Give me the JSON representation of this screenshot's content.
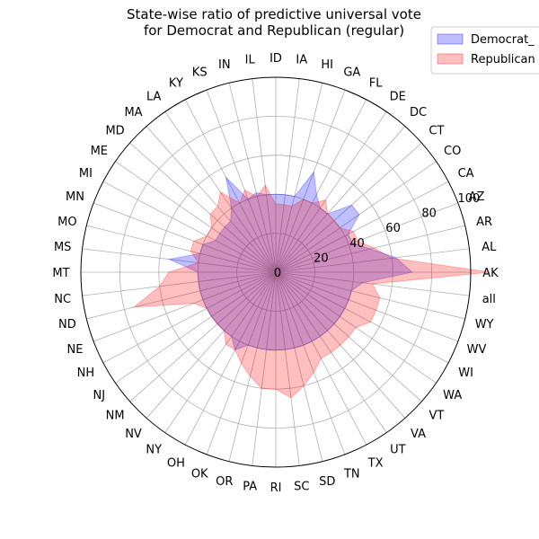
{
  "chart_data": {
    "type": "radar",
    "title_lines": [
      "State-wise ratio of predictive universal vote",
      "for Democrat and Republican (regular)"
    ],
    "categories": [
      "AK",
      "AL",
      "AR",
      "AZ",
      "CA",
      "CO",
      "CT",
      "DC",
      "DE",
      "FL",
      "GA",
      "HI",
      "IA",
      "ID",
      "IL",
      "IN",
      "KS",
      "KY",
      "LA",
      "MA",
      "MD",
      "ME",
      "MI",
      "MN",
      "MO",
      "MS",
      "MT",
      "NC",
      "ND",
      "NE",
      "NH",
      "NJ",
      "NM",
      "NV",
      "NY",
      "OH",
      "OK",
      "OR",
      "PA",
      "RI",
      "SC",
      "SD",
      "TN",
      "TX",
      "UT",
      "VA",
      "VT",
      "WA",
      "WI",
      "WV",
      "WY",
      "all"
    ],
    "rlim": [
      0,
      100
    ],
    "r_ticks": [
      0,
      20,
      40,
      60,
      80,
      100
    ],
    "grid": true,
    "legend_position": "top-right",
    "series": [
      {
        "name": "Democrat_",
        "color": "#0000ff",
        "values": [
          70,
          62,
          50,
          42,
          42,
          52,
          52,
          40,
          40,
          45,
          55,
          40,
          40,
          40,
          40,
          42,
          40,
          55,
          40,
          35,
          35,
          35,
          35,
          40,
          40,
          55,
          40,
          40,
          40,
          40,
          40,
          40,
          40,
          40,
          40,
          45,
          40,
          40,
          40,
          40,
          40,
          40,
          40,
          40,
          40,
          40,
          40,
          40,
          40,
          40,
          40,
          45
        ]
      },
      {
        "name": "Republican",
        "color": "#ff0000",
        "values": [
          110,
          60,
          52,
          45,
          45,
          40,
          40,
          40,
          45,
          40,
          40,
          35,
          35,
          35,
          45,
          40,
          45,
          40,
          50,
          45,
          45,
          40,
          40,
          45,
          45,
          40,
          55,
          60,
          75,
          45,
          40,
          40,
          40,
          40,
          45,
          45,
          50,
          55,
          60,
          60,
          65,
          60,
          55,
          50,
          50,
          50,
          50,
          50,
          55,
          55,
          55,
          50
        ]
      }
    ]
  }
}
